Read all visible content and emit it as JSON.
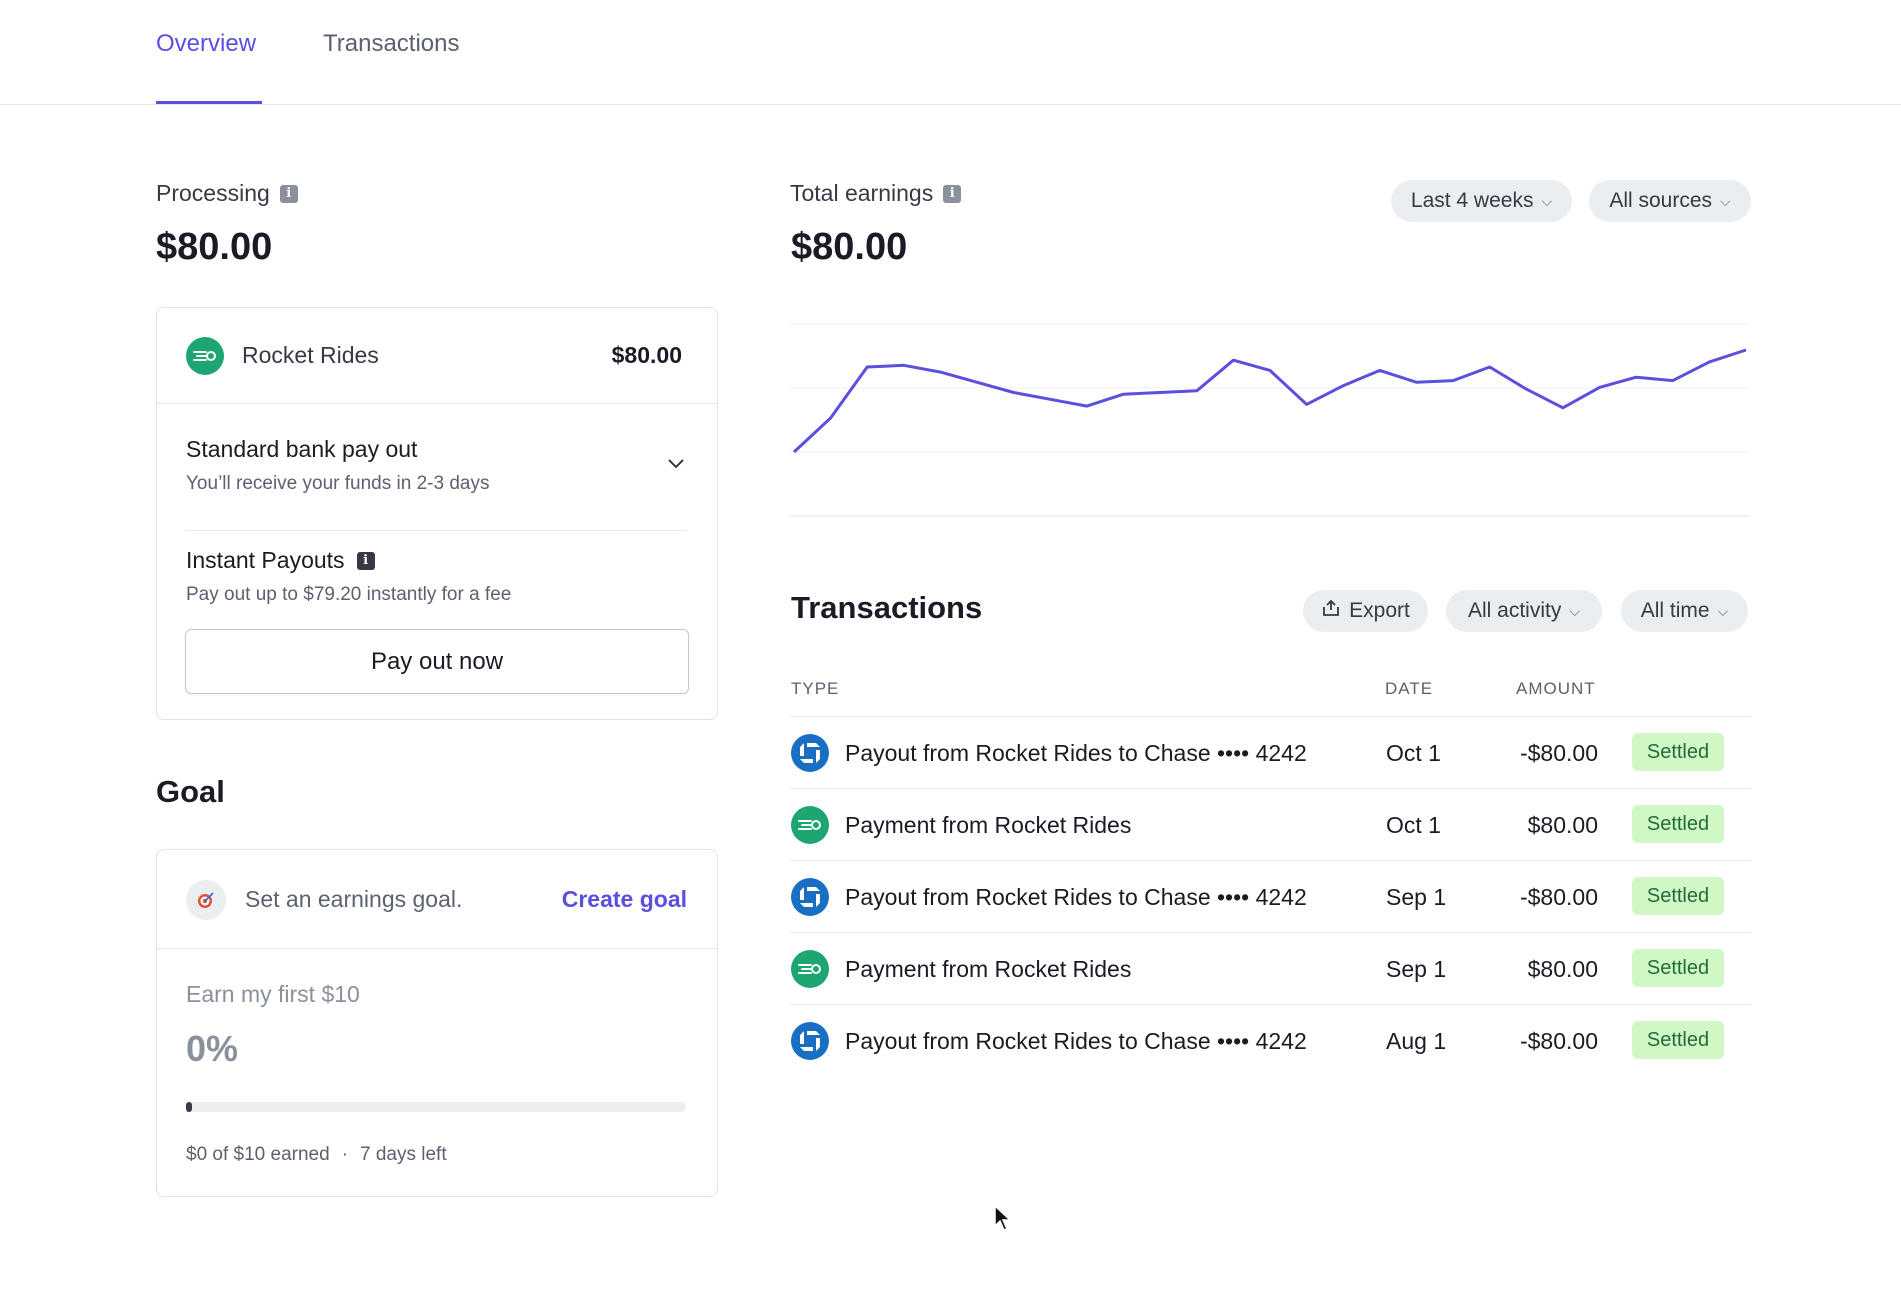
{
  "tabs": [
    {
      "label": "Overview",
      "active": true
    },
    {
      "label": "Transactions",
      "active": false
    }
  ],
  "processing": {
    "label": "Processing",
    "amount": "$80.00",
    "source": {
      "name": "Rocket Rides",
      "amount": "$80.00"
    },
    "standard": {
      "title": "Standard bank pay out",
      "subtitle": "You’ll receive your funds in 2-3 days"
    },
    "instant": {
      "title": "Instant Payouts",
      "subtitle": "Pay out up to $79.20 instantly for a fee"
    },
    "payout_button": "Pay out now"
  },
  "goal": {
    "title": "Goal",
    "prompt": "Set an earnings goal.",
    "create_label": "Create goal",
    "goal_name": "Earn my first $10",
    "percent": "0%",
    "progress_fraction": 0.0,
    "footer_earned": "$0 of $10 earned",
    "footer_sep": "·",
    "footer_left": "7 days left"
  },
  "earnings": {
    "label": "Total earnings",
    "amount": "$80.00",
    "range_filter": "Last 4 weeks",
    "source_filter": "All sources",
    "accent": "#5a4fde"
  },
  "chart_data": {
    "type": "line",
    "title": "",
    "xlabel": "",
    "ylabel": "",
    "grid": true,
    "y": [
      0,
      2,
      5,
      5.1,
      4.7,
      4.1,
      3.5,
      3.1,
      2.7,
      3.4,
      3.5,
      3.6,
      5.4,
      4.8,
      2.8,
      3.9,
      4.8,
      4.1,
      4.2,
      5,
      3.7,
      2.6,
      3.8,
      4.4,
      4.2,
      5.3,
      6
    ]
  },
  "transactions": {
    "title": "Transactions",
    "export_label": "Export",
    "activity_filter": "All activity",
    "time_filter": "All time",
    "columns": {
      "type": "TYPE",
      "date": "DATE",
      "amount": "AMOUNT"
    },
    "rows": [
      {
        "kind": "chase",
        "type": "Payout from Rocket Rides to Chase •••• 4242",
        "date": "Oct 1",
        "amount": "-$80.00",
        "status": "Settled"
      },
      {
        "kind": "rocket",
        "type": "Payment from Rocket Rides",
        "date": "Oct 1",
        "amount": "$80.00",
        "status": "Settled"
      },
      {
        "kind": "chase",
        "type": "Payout from Rocket Rides to Chase •••• 4242",
        "date": "Sep 1",
        "amount": "-$80.00",
        "status": "Settled"
      },
      {
        "kind": "rocket",
        "type": "Payment from Rocket Rides",
        "date": "Sep 1",
        "amount": "$80.00",
        "status": "Settled"
      },
      {
        "kind": "chase",
        "type": "Payout from Rocket Rides to Chase •••• 4242",
        "date": "Aug 1",
        "amount": "-$80.00",
        "status": "Settled"
      }
    ]
  }
}
